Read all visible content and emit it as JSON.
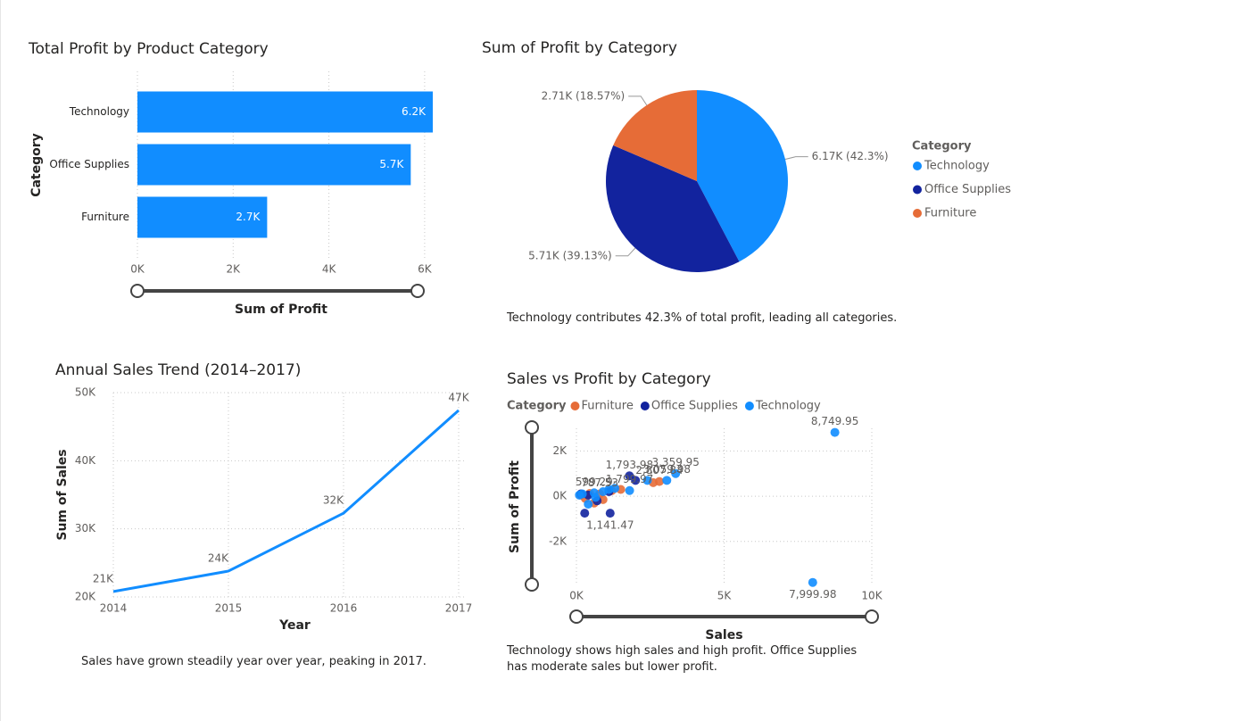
{
  "chart_data": [
    {
      "type": "bar",
      "title": "Total Profit by Product Category",
      "categories": [
        "Technology",
        "Office Supplies",
        "Furniture"
      ],
      "values": [
        6170,
        5710,
        2710
      ],
      "value_labels": [
        "6.2K",
        "5.7K",
        "2.7K"
      ],
      "color": "#118DFF",
      "xlim": [
        0,
        6170
      ],
      "xticks": [
        {
          "value": 0,
          "label": "0K"
        },
        {
          "value": 2000,
          "label": "2K"
        },
        {
          "value": 4000,
          "label": "4K"
        },
        {
          "value": 6000,
          "label": "6K"
        }
      ],
      "x_label": "Sum of Profit",
      "y_label": "Category",
      "grid": true
    },
    {
      "type": "pie",
      "title": "Sum of Profit by Category",
      "categories": [
        "Technology",
        "Office Supplies",
        "Furniture"
      ],
      "values": [
        6170,
        5710,
        2710
      ],
      "value_labels": [
        "6.17K (42.3%)",
        "5.71K (39.13%)",
        "2.71K (18.57%)"
      ],
      "colors": [
        "#118DFF",
        "#12239E",
        "#E66C37"
      ],
      "legend_title": "Category",
      "caption": "Technology contributes 42.3% of total profit, leading all categories."
    },
    {
      "type": "line",
      "title": "Annual Sales Trend (2014–2017)",
      "x": [
        2014,
        2015,
        2016,
        2017
      ],
      "values": [
        20800,
        23800,
        32300,
        47400
      ],
      "value_labels": [
        "21K",
        "24K",
        "32K",
        "47K"
      ],
      "color": "#118DFF",
      "xlim": [
        2014,
        2017
      ],
      "xticks": [
        2014,
        2015,
        2016,
        2017
      ],
      "ylim": [
        20000,
        50000
      ],
      "yticks": [
        {
          "value": 20000,
          "label": "20K"
        },
        {
          "value": 30000,
          "label": "30K"
        },
        {
          "value": 40000,
          "label": "40K"
        },
        {
          "value": 50000,
          "label": "50K"
        }
      ],
      "x_label": "Year",
      "y_label": "Sum of Sales",
      "grid": true,
      "caption": "Sales have grown steadily year over year, peaking in 2017."
    },
    {
      "type": "scatter",
      "title": "Sales vs Profit by Category",
      "legend_title": "Category",
      "series": [
        {
          "name": "Furniture",
          "color": "#E66C37",
          "x": [
            2807.84,
            787.53,
            1500,
            600,
            300,
            1200,
            2600,
            150,
            900,
            450
          ],
          "values": [
            650,
            100,
            300,
            -300,
            -100,
            250,
            600,
            50,
            -150,
            120
          ],
          "value_labels": [
            "2,807.84",
            "787.53",
            null,
            null,
            null,
            null,
            null,
            null,
            null,
            null
          ]
        },
        {
          "name": "Office Supplies",
          "color": "#12239E",
          "x": [
            1793.98,
            1141.47,
            2000,
            280,
            150,
            700,
            1100,
            400
          ],
          "values": [
            900,
            -750,
            700,
            -750,
            100,
            -200,
            200,
            50
          ],
          "value_labels": [
            "1,793.98",
            "1,141.47",
            null,
            null,
            null,
            null,
            null,
            null
          ]
        },
        {
          "name": "Technology",
          "color": "#118DFF",
          "x": [
            8749.95,
            7999.98,
            3359.95,
            3059.98,
            1799.97,
            599.29,
            2400,
            1100,
            400,
            200,
            900,
            1300,
            100,
            650
          ],
          "values": [
            2820,
            -3810,
            1000,
            700,
            250,
            150,
            700,
            300,
            -350,
            100,
            200,
            350,
            50,
            -50
          ],
          "value_labels": [
            "8,749.95",
            "7,999.98",
            "3,359.95",
            "3,059.98",
            "1,799.97",
            "599.29",
            null,
            null,
            null,
            null,
            null,
            null,
            null,
            null
          ]
        }
      ],
      "xlim": [
        0,
        10000
      ],
      "xticks": [
        {
          "value": 0,
          "label": "0K"
        },
        {
          "value": 5000,
          "label": "5K"
        },
        {
          "value": 10000,
          "label": "10K"
        }
      ],
      "ylim": [
        -3900,
        3000
      ],
      "yticks": [
        {
          "value": -2000,
          "label": "-2K"
        },
        {
          "value": 0,
          "label": "0K"
        },
        {
          "value": 2000,
          "label": "2K"
        }
      ],
      "x_label": "Sales",
      "y_label": "Sum of Profit",
      "grid": true,
      "caption": "Technology shows high sales and high profit. Office Supplies has moderate sales but lower profit."
    }
  ]
}
